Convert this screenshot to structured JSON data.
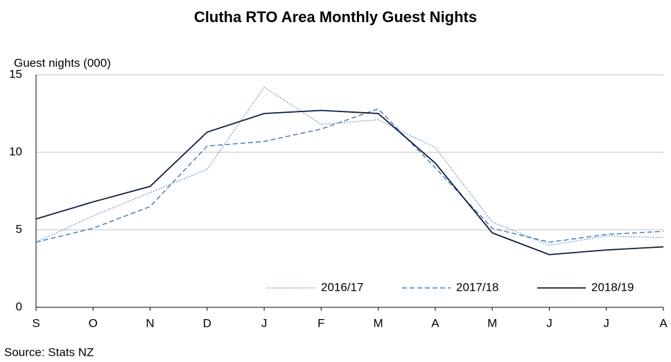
{
  "chart_data": {
    "type": "line",
    "title": "Clutha RTO Area Monthly Guest Nights",
    "y_label": "Guest nights (000)",
    "source": "Source: Stats NZ",
    "categories": [
      "S",
      "O",
      "N",
      "D",
      "J",
      "F",
      "M",
      "A",
      "M",
      "J",
      "J",
      "A"
    ],
    "series": [
      {
        "name": "2016/17",
        "color": "#7fa7d0",
        "style": "dotted",
        "values": [
          4.2,
          5.9,
          7.4,
          8.9,
          14.2,
          11.8,
          12.1,
          10.3,
          5.5,
          4.0,
          4.6,
          4.5
        ]
      },
      {
        "name": "2017/18",
        "color": "#4a7ead",
        "style": "dashed",
        "values": [
          4.2,
          5.1,
          6.5,
          10.4,
          10.7,
          11.5,
          12.8,
          9.0,
          5.1,
          4.2,
          4.7,
          4.9
        ]
      },
      {
        "name": "2018/19",
        "color": "#0d1b3e",
        "style": "solid",
        "values": [
          5.7,
          6.8,
          7.8,
          11.3,
          12.5,
          12.7,
          12.5,
          9.3,
          4.8,
          3.4,
          3.7,
          3.9
        ]
      }
    ],
    "ylim": [
      0,
      15
    ],
    "yticks": [
      0,
      5,
      10,
      15
    ],
    "grid": true,
    "legend": "lower right"
  }
}
